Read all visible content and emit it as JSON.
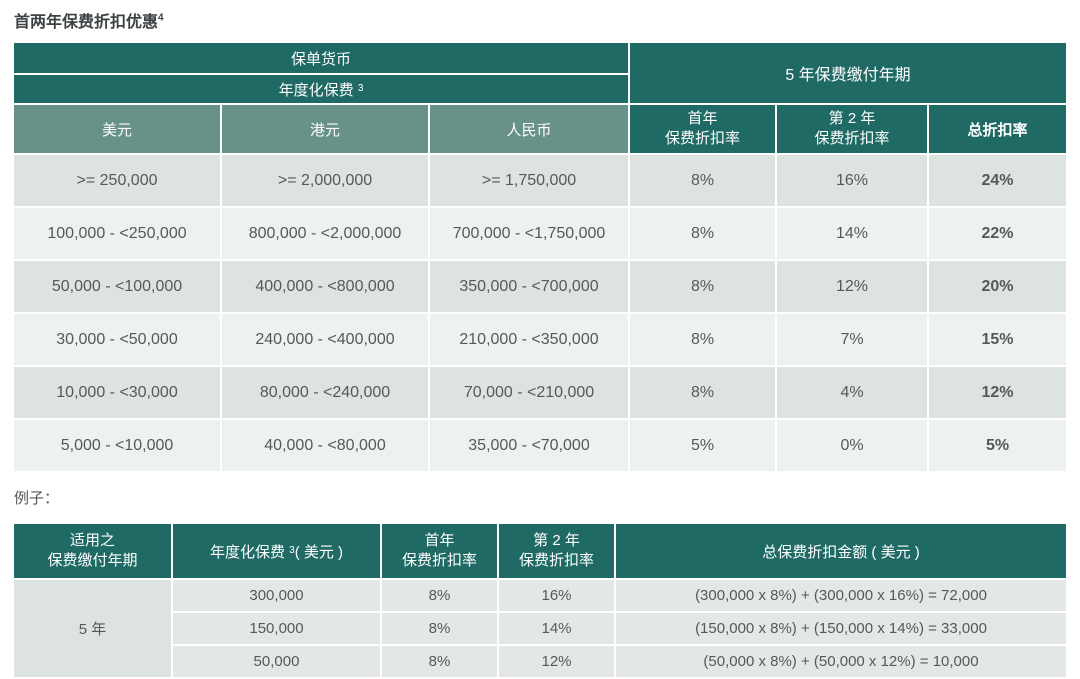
{
  "page": {
    "title": "首两年保费折扣优惠",
    "title_superscript": "4",
    "example_label": "例子："
  },
  "colors": {
    "header_dark_teal": "#1f6a64",
    "header_light_teal": "#68918a",
    "row_dark_gray": "#dde3e1",
    "row_light_gray": "#edf1ef",
    "example_row_gray": "#e3e8e6",
    "header_text": "#ffffff",
    "body_text": "#545a58"
  },
  "main_table": {
    "header": {
      "policy_currency": "保单货币",
      "annualized_premium": "年度化保费",
      "annualized_premium_superscript": "3",
      "payment_term": "5 年保费缴付年期",
      "currency_usd": "美元",
      "currency_hkd": "港元",
      "currency_rmb": "人民币",
      "first_year_line1": "首年",
      "first_year_line2": "保费折扣率",
      "second_year_line1": "第 2 年",
      "second_year_line2": "保费折扣率",
      "total_discount": "总折扣率"
    },
    "rows": [
      {
        "usd": ">= 250,000",
        "hkd": ">= 2,000,000",
        "rmb": ">= 1,750,000",
        "y1": "8%",
        "y2": "16%",
        "total": "24%"
      },
      {
        "usd": "100,000 - <250,000",
        "hkd": "800,000 - <2,000,000",
        "rmb": "700,000 - <1,750,000",
        "y1": "8%",
        "y2": "14%",
        "total": "22%"
      },
      {
        "usd": "50,000 - <100,000",
        "hkd": "400,000 - <800,000",
        "rmb": "350,000 - <700,000",
        "y1": "8%",
        "y2": "12%",
        "total": "20%"
      },
      {
        "usd": "30,000 - <50,000",
        "hkd": "240,000 - <400,000",
        "rmb": "210,000 - <350,000",
        "y1": "8%",
        "y2": "7%",
        "total": "15%"
      },
      {
        "usd": "10,000 - <30,000",
        "hkd": "80,000 - <240,000",
        "rmb": "70,000 - <210,000",
        "y1": "8%",
        "y2": "4%",
        "total": "12%"
      },
      {
        "usd": "5,000 - <10,000",
        "hkd": "40,000 - <80,000",
        "rmb": "35,000 - <70,000",
        "y1": "5%",
        "y2": "0%",
        "total": "5%"
      }
    ]
  },
  "example_table": {
    "header": {
      "term_line1": "适用之",
      "term_line2": "保费缴付年期",
      "premium_label": "年度化保费",
      "premium_superscript": "3",
      "premium_suffix": "( 美元 )",
      "first_year_line1": "首年",
      "first_year_line2": "保费折扣率",
      "second_year_line1": "第 2 年",
      "second_year_line2": "保费折扣率",
      "total_amount": "总保费折扣金额 ( 美元 )"
    },
    "term_value": "5 年",
    "rows": [
      {
        "premium": "300,000",
        "y1": "8%",
        "y2": "16%",
        "formula": "(300,000 x 8%) + (300,000 x 16%) = 72,000"
      },
      {
        "premium": "150,000",
        "y1": "8%",
        "y2": "14%",
        "formula": "(150,000 x 8%) + (150,000 x 14%) = 33,000"
      },
      {
        "premium": "50,000",
        "y1": "8%",
        "y2": "12%",
        "formula": "(50,000 x 8%) + (50,000 x 12%) = 10,000"
      }
    ]
  }
}
